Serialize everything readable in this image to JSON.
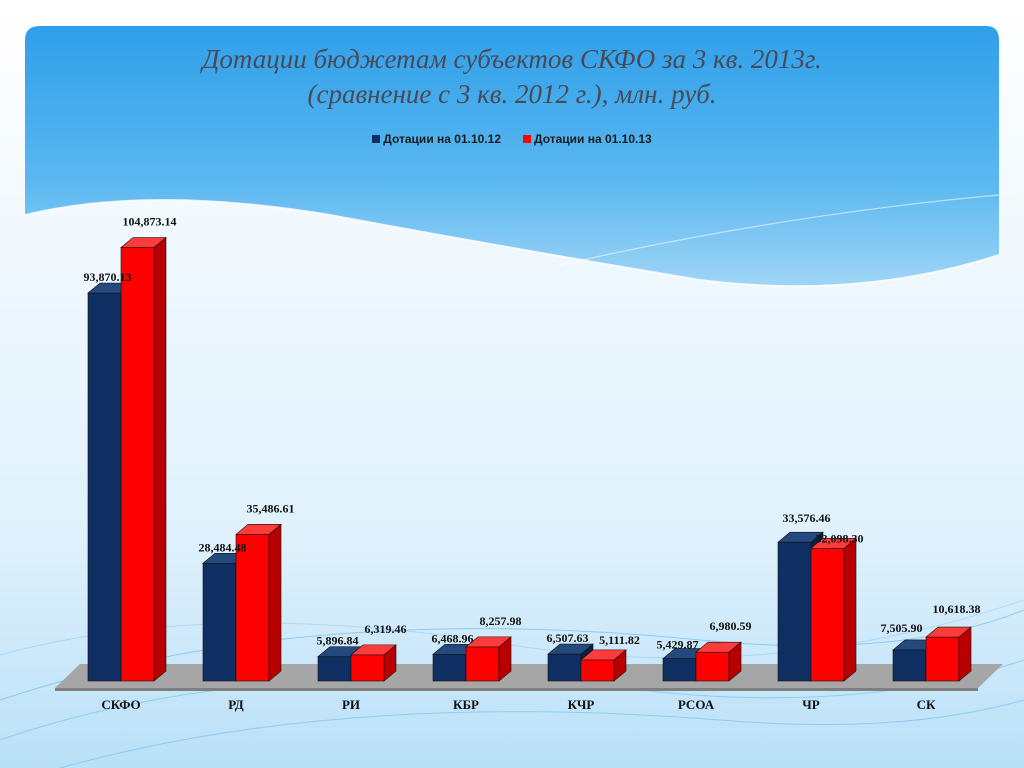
{
  "title_line1": "Дотации бюджетам субъектов СКФО за 3 кв. 2013г.",
  "title_line2": "(сравнение с 3 кв. 2012 г.), млн. руб.",
  "colors": {
    "series_2012": "#0f2f63",
    "series_2013": "#ff0000",
    "floor": "#a6a6a6",
    "panel": "#3aa7ec"
  },
  "chart_data": {
    "type": "bar",
    "categories": [
      "СКФО",
      "РД",
      "РИ",
      "КБР",
      "КЧР",
      "РСОА",
      "ЧР",
      "СК"
    ],
    "series": [
      {
        "name": "Дотации на 01.10.12",
        "values": [
          93870.13,
          28484.48,
          5896.84,
          6468.96,
          6507.63,
          5429.87,
          33576.46,
          7505.9
        ],
        "labels": [
          "93,870.13",
          "28,484.48",
          "5,896.84",
          "6,468.96",
          "6,507.63",
          "5,429.87",
          "33,576.46",
          "7,505.90"
        ]
      },
      {
        "name": "Дотации на 01.10.13",
        "values": [
          104873.14,
          35486.61,
          6319.46,
          8257.98,
          5111.82,
          6980.59,
          32098.3,
          10618.38
        ],
        "labels": [
          "104,873.14",
          "35,486.61",
          "6,319.46",
          "8,257.98",
          "5,111.82",
          "6,980.59",
          "32,098.30",
          "10,618.38"
        ]
      }
    ],
    "ylim": [
      0,
      110000
    ],
    "grid": false,
    "legend_position": "top"
  }
}
